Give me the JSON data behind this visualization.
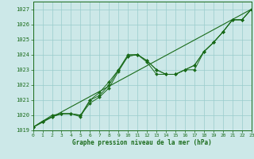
{
  "xlabel": "Graphe pression niveau de la mer (hPa)",
  "ylim": [
    1019,
    1027.5
  ],
  "xlim": [
    0,
    23
  ],
  "yticks": [
    1019,
    1020,
    1021,
    1022,
    1023,
    1024,
    1025,
    1026,
    1027
  ],
  "xticks": [
    0,
    1,
    2,
    3,
    4,
    5,
    6,
    7,
    8,
    9,
    10,
    11,
    12,
    13,
    14,
    15,
    16,
    17,
    18,
    19,
    20,
    21,
    22,
    23
  ],
  "bg_color": "#cce8e8",
  "grid_color": "#99cccc",
  "line_color": "#1a6b1a",
  "series1_x": [
    0,
    1,
    2,
    3,
    4,
    5,
    6,
    7,
    8,
    9,
    10,
    11,
    12,
    13,
    14,
    15,
    16,
    17,
    18,
    19,
    20,
    21,
    22,
    23
  ],
  "series1_y": [
    1019.2,
    1019.6,
    1019.9,
    1020.1,
    1020.1,
    1020.0,
    1020.8,
    1021.2,
    1021.8,
    1022.9,
    1023.9,
    1024.0,
    1023.6,
    1023.0,
    1022.7,
    1022.7,
    1023.0,
    1023.0,
    1024.2,
    1024.8,
    1025.5,
    1026.3,
    1026.3,
    1027.0
  ],
  "series2_x": [
    0,
    1,
    2,
    3,
    4,
    5,
    6,
    7,
    8,
    9,
    10,
    11,
    12,
    13,
    14,
    15,
    16,
    17,
    18,
    19,
    20,
    21,
    22,
    23
  ],
  "series2_y": [
    1019.2,
    1019.6,
    1019.9,
    1020.1,
    1020.1,
    1020.0,
    1021.0,
    1021.5,
    1022.2,
    1023.0,
    1024.0,
    1024.0,
    1023.6,
    1023.0,
    1022.7,
    1022.7,
    1023.0,
    1023.3,
    1024.2,
    1024.8,
    1025.5,
    1026.3,
    1026.3,
    1027.0
  ],
  "series3_x": [
    0,
    1,
    2,
    3,
    4,
    5,
    6,
    7,
    8,
    9,
    10,
    11,
    12,
    13,
    14,
    15,
    16,
    17,
    18,
    19,
    20,
    21,
    22,
    23
  ],
  "series3_y": [
    1019.2,
    1019.6,
    1020.0,
    1020.1,
    1020.1,
    1019.9,
    1021.0,
    1021.3,
    1022.0,
    1023.0,
    1023.9,
    1024.0,
    1023.5,
    1022.7,
    1022.7,
    1022.7,
    1023.0,
    1023.3,
    1024.2,
    1024.8,
    1025.5,
    1026.3,
    1026.3,
    1027.0
  ],
  "trend_x": [
    0,
    23
  ],
  "trend_y": [
    1019.2,
    1027.0
  ]
}
